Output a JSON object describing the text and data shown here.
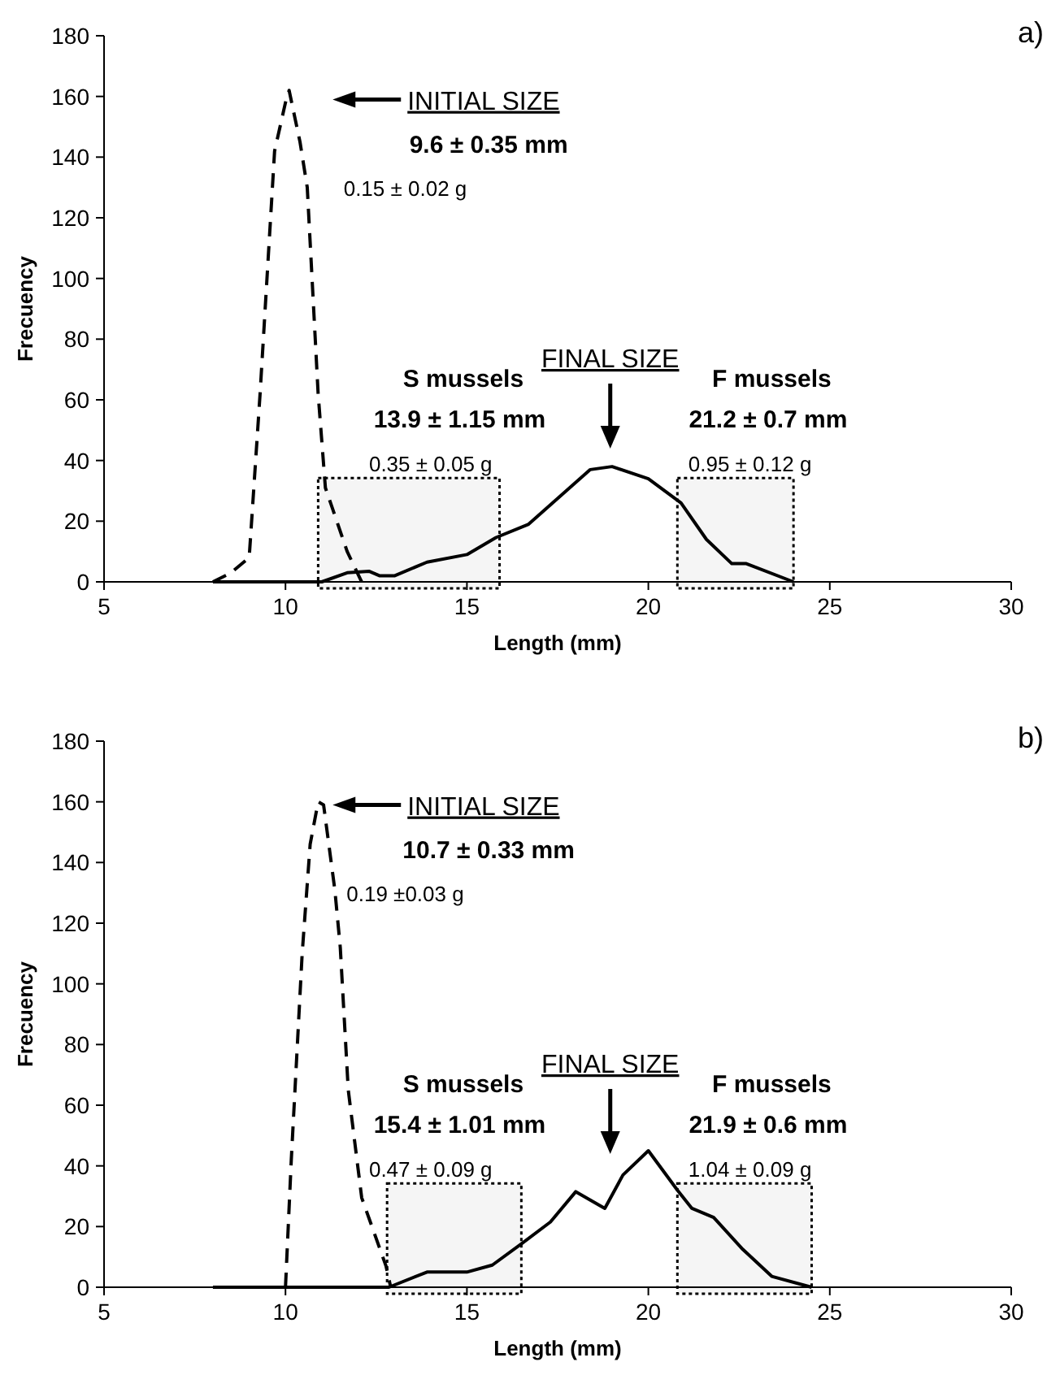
{
  "chart_data": [
    {
      "type": "line",
      "title": "a)",
      "xlabel": "Length (mm)",
      "ylabel": "Frecuency",
      "xlim": [
        5,
        30
      ],
      "xticks": [
        5,
        10,
        15,
        20,
        25,
        30
      ],
      "ylim": [
        0,
        180
      ],
      "yticks": [
        0,
        20,
        40,
        60,
        80,
        100,
        120,
        140,
        160,
        180
      ],
      "series": [
        {
          "color": "#000000",
          "line_style": "dashed",
          "x": [
            8,
            8.5,
            9,
            9.3,
            9.7,
            10,
            10.1,
            10.4,
            10.6,
            10.9,
            11.1,
            11.7,
            12.1
          ],
          "values": [
            0,
            3,
            8,
            62,
            142,
            158,
            162,
            145,
            130,
            62,
            31,
            10,
            0
          ]
        },
        {
          "color": "#000000",
          "line_style": "solid",
          "x": [
            8,
            11,
            11.7,
            12.3,
            12.6,
            13,
            13.9,
            15,
            15.8,
            16.7,
            18.4,
            19,
            20,
            20.9,
            21.6,
            22.3,
            22.7,
            24
          ],
          "values": [
            0,
            0,
            3,
            3.5,
            2,
            2,
            6.5,
            9,
            14.6,
            19,
            37,
            38,
            34,
            26,
            14,
            6,
            6,
            0
          ]
        }
      ],
      "bands": [
        {
          "axis": "x",
          "from": 10.9,
          "to": 15.9
        },
        {
          "axis": "x",
          "from": 20.8,
          "to": 24
        }
      ],
      "annotations": [
        "INITIAL SIZE",
        "9.6 ± 0.35 mm",
        "0.15 ± 0.02 g",
        "FINAL SIZE",
        "S mussels",
        "13.9 ± 1.15 mm",
        "0.35 ± 0.05 g",
        "F mussels",
        "21.2 ± 0.7 mm",
        "0.95 ± 0.12 g"
      ]
    },
    {
      "type": "line",
      "title": "b)",
      "xlabel": "Length (mm)",
      "ylabel": "Frecuency",
      "xlim": [
        5,
        30
      ],
      "xticks": [
        5,
        10,
        15,
        20,
        25,
        30
      ],
      "ylim": [
        0,
        180
      ],
      "yticks": [
        0,
        20,
        40,
        60,
        80,
        100,
        120,
        140,
        160,
        180
      ],
      "series": [
        {
          "color": "#000000",
          "line_style": "dashed",
          "x": [
            10,
            10.16,
            10.46,
            10.68,
            10.9,
            11.05,
            11.36,
            11.51,
            11.73,
            12.1,
            12.77,
            12.9
          ],
          "values": [
            0,
            42,
            110,
            146,
            160,
            159,
            131,
            112,
            65,
            29.5,
            7,
            0
          ]
        },
        {
          "color": "#000000",
          "line_style": "solid",
          "x": [
            8,
            12.85,
            13.9,
            15,
            15.7,
            16.5,
            17.3,
            18,
            18.8,
            19.3,
            20,
            20.8,
            21.2,
            21.8,
            22.6,
            23.4,
            24.5
          ],
          "values": [
            0,
            0,
            5,
            5,
            7.3,
            14.3,
            21.5,
            31.5,
            26,
            37,
            45,
            32,
            26,
            23,
            12.5,
            3.6,
            0
          ]
        }
      ],
      "bands": [
        {
          "axis": "x",
          "from": 12.8,
          "to": 16.5
        },
        {
          "axis": "x",
          "from": 20.8,
          "to": 24.5
        }
      ],
      "annotations": [
        "INITIAL SIZE",
        "10.7 ± 0.33 mm",
        "0.19 ±0.03 g",
        "FINAL SIZE",
        "S mussels",
        "15.4 ± 1.01 mm",
        "0.47 ± 0.09 g",
        "F mussels",
        "21.9 ± 0.6 mm",
        "1.04 ± 0.09 g"
      ]
    }
  ]
}
